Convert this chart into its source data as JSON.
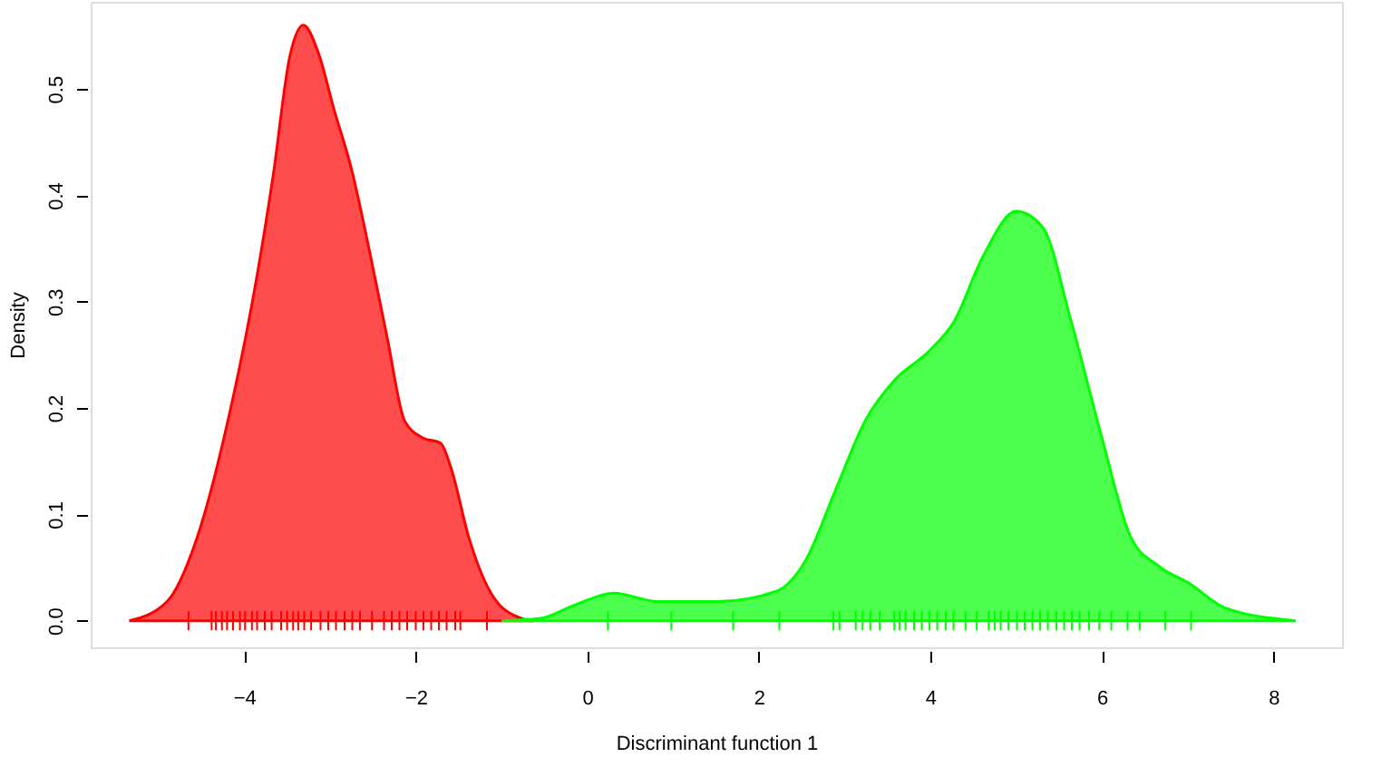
{
  "chart_data": {
    "type": "area",
    "xlabel": "Discriminant function 1",
    "ylabel": "Density",
    "xlim": [
      -5.79,
      8.8
    ],
    "ylim": [
      -0.025,
      0.582
    ],
    "xticks": [
      -4,
      -2,
      0,
      2,
      4,
      6,
      8
    ],
    "yticks": [
      {
        "value": 0,
        "label": "0.0"
      },
      {
        "value": 0.1,
        "label": "0.1"
      },
      {
        "value": 0.2,
        "label": "0.2"
      },
      {
        "value": 0.3,
        "label": "0.3"
      },
      {
        "value": 0.4,
        "label": "0.4"
      },
      {
        "value": 0.5,
        "label": "0.5"
      }
    ],
    "grid": false,
    "series": [
      {
        "color": "#ff0000",
        "x": [
          -5.34,
          -4.9,
          -4.55,
          -4.19,
          -3.86,
          -3.66,
          -3.47,
          -3.31,
          -3.14,
          -2.95,
          -2.75,
          -2.54,
          -2.33,
          -2.13,
          -1.92,
          -1.71,
          -1.59,
          -1.38,
          -1.1,
          -0.76,
          -0.62
        ],
        "values": [
          0,
          0.018,
          0.078,
          0.188,
          0.32,
          0.42,
          0.53,
          0.56,
          0.535,
          0.48,
          0.425,
          0.348,
          0.265,
          0.188,
          0.172,
          0.167,
          0.144,
          0.078,
          0.023,
          0.002,
          0
        ]
      },
      {
        "color": "#00ff00",
        "x": [
          -1.0,
          -0.56,
          -0.14,
          0.31,
          0.83,
          1.51,
          2.21,
          2.54,
          2.89,
          3.24,
          3.58,
          3.99,
          4.28,
          4.61,
          5.0,
          5.31,
          5.64,
          6.0,
          6.34,
          6.67,
          7.02,
          7.44,
          8.26
        ],
        "values": [
          0,
          0.002,
          0.015,
          0.026,
          0.018,
          0.018,
          0.028,
          0.056,
          0.122,
          0.188,
          0.226,
          0.254,
          0.282,
          0.342,
          0.385,
          0.37,
          0.282,
          0.172,
          0.078,
          0.051,
          0.035,
          0.012,
          0
        ]
      },
      {
        "type": "bar",
        "color": "#ff0000",
        "x": [
          -4.65,
          -4.38,
          -4.33,
          -4.26,
          -4.2,
          -4.13,
          -4.05,
          -3.99,
          -3.91,
          -3.85,
          -3.76,
          -3.68,
          -3.57,
          -3.5,
          -3.43,
          -3.37,
          -3.3,
          -3.22,
          -3.11,
          -3.02,
          -2.93,
          -2.83,
          -2.74,
          -2.65,
          -2.51,
          -2.37,
          -2.28,
          -2.19,
          -2.1,
          -2.0,
          -1.91,
          -1.82,
          -1.73,
          -1.64,
          -1.54,
          -1.48,
          -1.17
        ],
        "base": [
          -0.009,
          -0.009,
          -0.009,
          -0.009,
          -0.009,
          -0.009,
          -0.009,
          -0.009,
          -0.009,
          -0.009,
          -0.009,
          -0.009,
          -0.009,
          -0.009,
          -0.009,
          -0.009,
          -0.009,
          -0.009,
          -0.009,
          -0.009,
          -0.009,
          -0.009,
          -0.009,
          -0.009,
          -0.009,
          -0.009,
          -0.009,
          -0.009,
          -0.009,
          -0.009,
          -0.009,
          -0.009,
          -0.009,
          -0.009,
          -0.009,
          -0.009,
          -0.009
        ],
        "values": [
          0.018,
          0.018,
          0.018,
          0.018,
          0.018,
          0.018,
          0.018,
          0.018,
          0.018,
          0.018,
          0.018,
          0.018,
          0.018,
          0.018,
          0.018,
          0.018,
          0.018,
          0.018,
          0.018,
          0.018,
          0.018,
          0.018,
          0.018,
          0.018,
          0.018,
          0.018,
          0.018,
          0.018,
          0.018,
          0.018,
          0.018,
          0.018,
          0.018,
          0.018,
          0.018,
          0.018,
          0.018
        ]
      },
      {
        "type": "bar",
        "color": "#00ff00",
        "x": [
          0.24,
          0.98,
          1.7,
          2.24,
          2.87,
          2.94,
          3.13,
          3.21,
          3.3,
          3.41,
          3.58,
          3.64,
          3.71,
          3.81,
          3.9,
          3.99,
          4.08,
          4.18,
          4.27,
          4.41,
          4.54,
          4.68,
          4.75,
          4.82,
          4.91,
          5.01,
          5.1,
          5.19,
          5.28,
          5.37,
          5.47,
          5.56,
          5.65,
          5.74,
          5.85,
          5.97,
          6.11,
          6.3,
          6.44,
          6.74,
          7.04
        ],
        "base": [
          -0.009,
          -0.009,
          -0.009,
          -0.009,
          -0.009,
          -0.009,
          -0.009,
          -0.009,
          -0.009,
          -0.009,
          -0.009,
          -0.009,
          -0.009,
          -0.009,
          -0.009,
          -0.009,
          -0.009,
          -0.009,
          -0.009,
          -0.009,
          -0.009,
          -0.009,
          -0.009,
          -0.009,
          -0.009,
          -0.009,
          -0.009,
          -0.009,
          -0.009,
          -0.009,
          -0.009,
          -0.009,
          -0.009,
          -0.009,
          -0.009,
          -0.009,
          -0.009,
          -0.009,
          -0.009,
          -0.009,
          -0.009
        ],
        "values": [
          0.018,
          0.018,
          0.018,
          0.018,
          0.018,
          0.018,
          0.018,
          0.018,
          0.018,
          0.018,
          0.018,
          0.018,
          0.018,
          0.018,
          0.018,
          0.018,
          0.018,
          0.018,
          0.018,
          0.018,
          0.018,
          0.018,
          0.018,
          0.018,
          0.018,
          0.018,
          0.018,
          0.018,
          0.018,
          0.018,
          0.018,
          0.018,
          0.018,
          0.018,
          0.018,
          0.018,
          0.018,
          0.018,
          0.018,
          0.018,
          0.018
        ]
      }
    ]
  }
}
